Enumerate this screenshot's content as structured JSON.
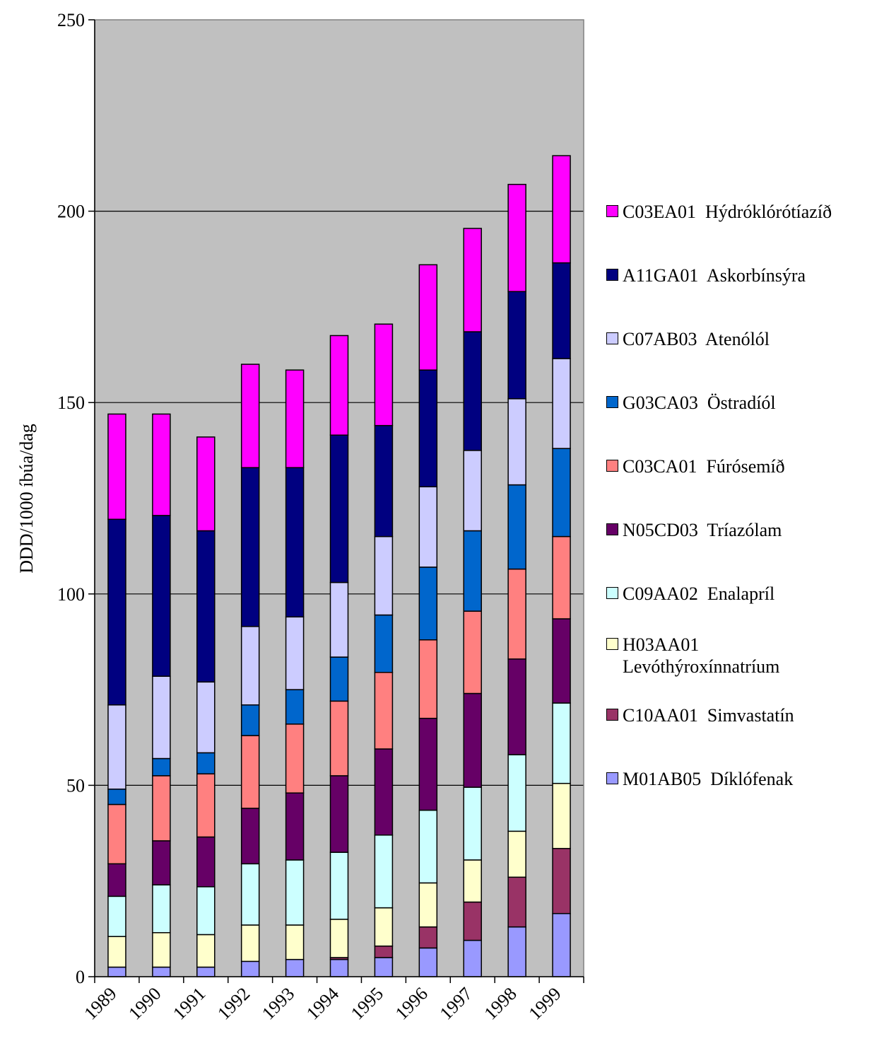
{
  "chart_data": {
    "type": "bar",
    "stacked": true,
    "title": "",
    "xlabel": "",
    "ylabel": "DDD/1000 íbúa/dag",
    "ylim": [
      0,
      250
    ],
    "yticks": [
      0,
      50,
      100,
      150,
      200,
      250
    ],
    "grid": true,
    "legend_position": "right",
    "categories": [
      "1989",
      "1990",
      "1991",
      "1992",
      "1993",
      "1994",
      "1995",
      "1996",
      "1997",
      "1998",
      "1999"
    ],
    "series": [
      {
        "name": "M01AB05  Díklófenak",
        "color": "#9999ff",
        "values": [
          2.5,
          2.5,
          2.5,
          4,
          4.5,
          4.5,
          5,
          7.5,
          9.5,
          13,
          16.5
        ]
      },
      {
        "name": "C10AA01  Simvastatín",
        "color": "#993366",
        "values": [
          0,
          0,
          0,
          0,
          0,
          0.5,
          3,
          5.5,
          10,
          13,
          17
        ]
      },
      {
        "name": "H03AA01  Levóthýroxínnatríum",
        "color": "#ffffcc",
        "values": [
          8,
          9,
          8.5,
          9.5,
          9,
          10,
          10,
          11.5,
          11,
          12,
          17
        ]
      },
      {
        "name": "C09AA02  Enalapríl",
        "color": "#ccffff",
        "values": [
          10.5,
          12.5,
          12.5,
          16,
          17,
          17.5,
          19,
          19,
          19,
          20,
          21
        ]
      },
      {
        "name": "N05CD03  Tríazólam",
        "color": "#660066",
        "values": [
          8.5,
          11.5,
          13,
          14.5,
          17.5,
          20,
          22.5,
          24,
          24.5,
          25,
          22
        ]
      },
      {
        "name": "C03CA01  Fúrósemíð",
        "color": "#ff8080",
        "values": [
          15.5,
          17,
          16.5,
          19,
          18,
          19.5,
          20,
          20.5,
          21.5,
          23.5,
          21.5
        ]
      },
      {
        "name": "G03CA03  Östradíól",
        "color": "#0066cc",
        "values": [
          4,
          4.5,
          5.5,
          8,
          9,
          11.5,
          15,
          19,
          21,
          22,
          23
        ]
      },
      {
        "name": "C07AB03  Atenólól",
        "color": "#ccccff",
        "values": [
          22,
          21.5,
          18.5,
          20.5,
          19,
          19.5,
          20.5,
          21,
          21,
          22.5,
          23.5
        ]
      },
      {
        "name": "A11GA01  Askorbínsýra",
        "color": "#000080",
        "values": [
          48.5,
          42,
          39.5,
          41.5,
          39,
          38.5,
          29,
          30.5,
          31,
          28,
          25
        ]
      },
      {
        "name": "C03EA01  Hýdróklórótíazíð",
        "color": "#ff00ff",
        "values": [
          27.5,
          26.5,
          24.5,
          27,
          25.5,
          26,
          26.5,
          27.5,
          27,
          28,
          28
        ]
      }
    ]
  }
}
